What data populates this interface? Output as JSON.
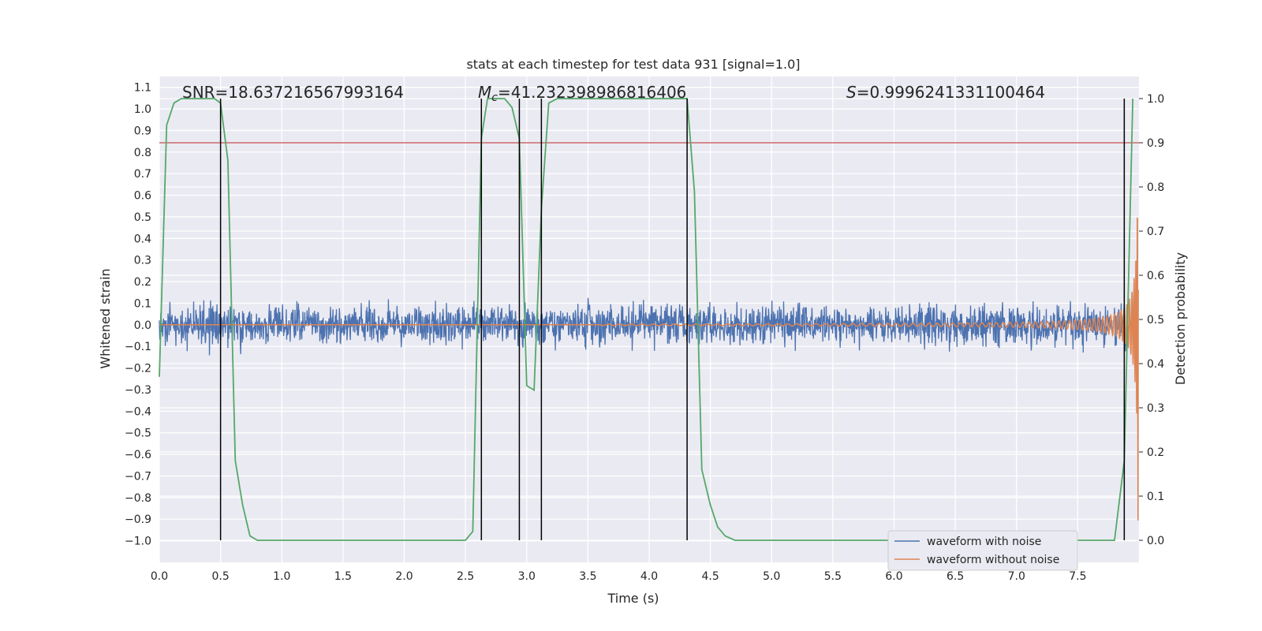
{
  "chart_data": {
    "type": "line",
    "title": "stats at each timestep for test data 931 [signal=1.0]",
    "xlabel": "Time (s)",
    "ylabel": "Whitened strain",
    "y2label": "Detection probability",
    "xlim": [
      0.0,
      8.0
    ],
    "ylim": [
      -1.1,
      1.15
    ],
    "y2lim": [
      -0.05,
      1.05
    ],
    "xticks": [
      "0.0",
      "0.5",
      "1.0",
      "1.5",
      "2.0",
      "2.5",
      "3.0",
      "3.5",
      "4.0",
      "4.5",
      "5.0",
      "5.5",
      "6.0",
      "6.5",
      "7.0",
      "7.5"
    ],
    "yticks": [
      "−1.0",
      "−0.9",
      "−0.8",
      "−0.7",
      "−0.6",
      "−0.5",
      "−0.4",
      "−0.3",
      "−0.2",
      "−0.1",
      "0.0",
      "0.1",
      "0.2",
      "0.3",
      "0.4",
      "0.5",
      "0.6",
      "0.7",
      "0.8",
      "0.9",
      "1.0",
      "1.1"
    ],
    "y2ticks": [
      "0.0",
      "0.1",
      "0.2",
      "0.3",
      "0.4",
      "0.5",
      "0.6",
      "0.7",
      "0.8",
      "0.9",
      "1.0"
    ],
    "grid": true,
    "legend_position": "lower-right",
    "annotations": {
      "snr": "SNR=18.637216567993164",
      "mc_symbol": "M",
      "mc_sub": "c",
      "mc_value": "=41.232398986816406",
      "s_symbol": "S",
      "s_value": "=0.9996241331100464"
    },
    "threshold": 0.9,
    "vertical_markers": [
      0.5,
      2.63,
      2.94,
      3.12,
      4.31,
      7.88
    ],
    "series": [
      {
        "name": "waveform with noise",
        "color": "#4c72b0",
        "noise_amplitude": 0.15,
        "chirp_end_amplitude": 0.6
      },
      {
        "name": "waveform without noise",
        "color": "#dd8452",
        "chirp_start_time": 4.3,
        "chirp_end_time": 8.0,
        "chirp_end_amplitude": 1.05
      },
      {
        "name": "",
        "color": "#55a868",
        "axis": "y2",
        "x": [
          0.0,
          0.06,
          0.12,
          0.18,
          0.26,
          0.32,
          0.45,
          0.5,
          0.56,
          0.62,
          0.68,
          0.74,
          0.8,
          1.0,
          1.5,
          2.0,
          2.4,
          2.5,
          2.56,
          2.63,
          2.68,
          2.75,
          2.82,
          2.88,
          2.94,
          3.0,
          3.06,
          3.12,
          3.18,
          3.25,
          3.5,
          4.0,
          4.31,
          4.37,
          4.43,
          4.5,
          4.56,
          4.62,
          4.7,
          5.0,
          6.0,
          7.0,
          7.8,
          7.88,
          7.95
        ],
        "y": [
          0.37,
          0.94,
          0.99,
          1.0,
          1.0,
          1.0,
          1.0,
          0.99,
          0.86,
          0.18,
          0.08,
          0.01,
          0.0,
          0.0,
          0.0,
          0.0,
          0.0,
          0.0,
          0.02,
          0.91,
          1.0,
          1.0,
          1.0,
          0.98,
          0.91,
          0.35,
          0.34,
          0.75,
          0.99,
          1.0,
          1.0,
          1.0,
          1.0,
          0.79,
          0.16,
          0.08,
          0.03,
          0.01,
          0.0,
          0.0,
          0.0,
          0.0,
          0.0,
          0.18,
          1.0
        ]
      }
    ]
  }
}
